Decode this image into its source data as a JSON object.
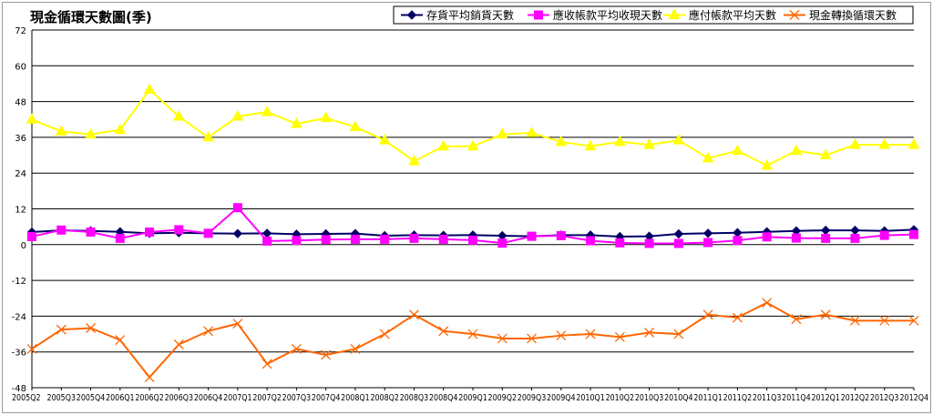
{
  "chart_data": {
    "type": "line",
    "title": "現金循環天數圖(季)",
    "xlabel": "",
    "ylabel": "",
    "ylim": [
      -48,
      72
    ],
    "yticks": [
      72,
      60,
      48,
      36,
      24,
      12,
      0,
      -12,
      -24,
      -36,
      -48
    ],
    "grid": true,
    "legend_position": "top-right",
    "categories": [
      "2005Q2",
      "2005Q3",
      "2005Q4",
      "2006Q1",
      "2006Q2",
      "2006Q3",
      "2006Q4",
      "2007Q1",
      "2007Q2",
      "2007Q3",
      "2007Q4",
      "2008Q1",
      "2008Q2",
      "2008Q3",
      "2008Q4",
      "2009Q1",
      "2009Q2",
      "2009Q3",
      "2009Q4",
      "2010Q1",
      "2010Q2",
      "2010Q3",
      "2010Q4",
      "2011Q1",
      "2011Q2",
      "2011Q3",
      "2011Q4",
      "2012Q1",
      "2012Q2",
      "2012Q3",
      "2012Q4"
    ],
    "series": [
      {
        "name": "存貨平均銷貨天數",
        "color": "#000066",
        "marker": "diamond",
        "values": [
          4.2,
          4.8,
          4.6,
          4.3,
          3.8,
          4.0,
          3.8,
          3.7,
          3.8,
          3.5,
          3.6,
          3.7,
          3.0,
          3.2,
          3.1,
          3.2,
          3.0,
          2.8,
          3.2,
          3.2,
          2.7,
          2.8,
          3.6,
          3.8,
          4.0,
          4.3,
          4.6,
          4.8,
          4.8,
          4.6,
          5.0
        ]
      },
      {
        "name": "應收帳款平均收現天數",
        "color": "#ff00ff",
        "marker": "square",
        "values": [
          2.7,
          4.9,
          4.2,
          2.1,
          4.2,
          5.0,
          3.8,
          12.4,
          1.2,
          1.4,
          1.7,
          1.8,
          1.8,
          2.1,
          1.8,
          1.5,
          0.5,
          2.8,
          3.0,
          1.3,
          0.6,
          0.4,
          0.4,
          0.7,
          1.4,
          2.6,
          2.2,
          2.1,
          2.1,
          3.1,
          3.4
        ]
      },
      {
        "name": "應付帳款平均天數",
        "color": "#ffff00",
        "marker": "triangle",
        "values": [
          42.0,
          38.0,
          37.0,
          38.5,
          52.0,
          43.0,
          36.0,
          43.0,
          44.5,
          40.5,
          42.5,
          39.5,
          35.0,
          28.0,
          33.0,
          33.0,
          37.0,
          37.5,
          34.5,
          33.0,
          34.5,
          33.5,
          35.0,
          29.0,
          31.5,
          26.5,
          31.5,
          30.0,
          33.5,
          33.5,
          33.5
        ]
      },
      {
        "name": "現金轉換循環天數",
        "color": "#ff6600",
        "marker": "x",
        "values": [
          -35.0,
          -28.5,
          -28.0,
          -32.0,
          -44.5,
          -33.5,
          -29.0,
          -26.5,
          -40.0,
          -35.0,
          -37.0,
          -35.0,
          -30.0,
          -23.5,
          -29.0,
          -30.0,
          -31.5,
          -31.5,
          -30.5,
          -30.0,
          -31.0,
          -29.5,
          -30.0,
          -23.5,
          -24.5,
          -19.5,
          -25.0,
          -23.5,
          -25.5,
          -25.5,
          -25.5
        ]
      }
    ]
  }
}
